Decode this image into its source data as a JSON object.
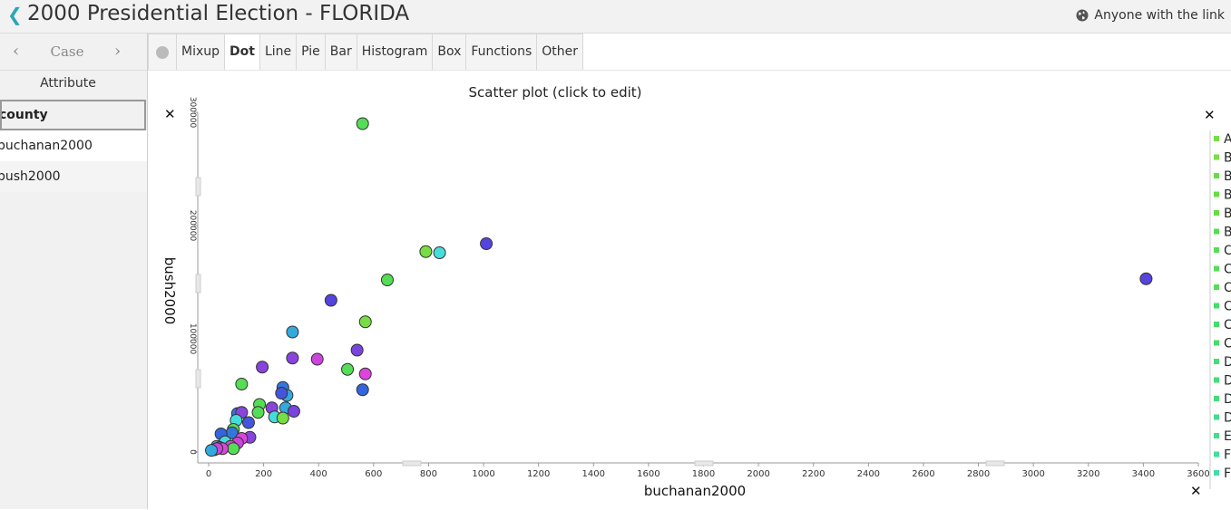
{
  "header": {
    "title": "2000 Presidential Election - FLORIDA",
    "share_label": "Anyone with the link"
  },
  "case_nav": {
    "label": "Case"
  },
  "attributes": {
    "heading": "Attribute",
    "items": [
      "county",
      "buchanan2000",
      "bush2000"
    ],
    "selected": "county"
  },
  "toolbar": {
    "tabs": [
      "Mixup",
      "Dot",
      "Line",
      "Pie",
      "Bar",
      "Histogram",
      "Box",
      "Functions",
      "Other"
    ],
    "active": "Dot"
  },
  "plot": {
    "title": "Scatter plot (click to edit)"
  },
  "legend": {
    "labels": [
      "A",
      "B",
      "B",
      "B",
      "B",
      "B",
      "C",
      "C",
      "C",
      "C",
      "C",
      "C",
      "D",
      "D",
      "D",
      "D",
      "E",
      "F",
      "F"
    ]
  },
  "chart_data": {
    "type": "scatter",
    "title": "Scatter plot (click to edit)",
    "xlabel": "buchanan2000",
    "ylabel": "bush2000",
    "xlim": [
      0,
      3600
    ],
    "ylim": [
      0,
      300000
    ],
    "x_ticks": [
      "0",
      "200",
      "400",
      "600",
      "800",
      "1000",
      "1200",
      "1400",
      "1600",
      "1800",
      "2000",
      "2200",
      "2400",
      "2600",
      "2800",
      "3000",
      "3200",
      "3400",
      "3600"
    ],
    "y_ticks": [
      "0",
      "100000",
      "200000",
      "300000"
    ],
    "points": [
      {
        "x": 560,
        "y": 290000,
        "color": "#55dd55"
      },
      {
        "x": 1010,
        "y": 184000,
        "color": "#5544dd"
      },
      {
        "x": 790,
        "y": 177000,
        "color": "#77dd44"
      },
      {
        "x": 840,
        "y": 176000,
        "color": "#44dddd"
      },
      {
        "x": 650,
        "y": 152000,
        "color": "#55dd55"
      },
      {
        "x": 3410,
        "y": 153000,
        "color": "#5544dd"
      },
      {
        "x": 445,
        "y": 134000,
        "color": "#5544dd"
      },
      {
        "x": 570,
        "y": 115000,
        "color": "#77dd44"
      },
      {
        "x": 305,
        "y": 106000,
        "color": "#33aadd"
      },
      {
        "x": 540,
        "y": 90000,
        "color": "#7744dd"
      },
      {
        "x": 305,
        "y": 83000,
        "color": "#8844dd"
      },
      {
        "x": 395,
        "y": 82000,
        "color": "#cc44dd"
      },
      {
        "x": 195,
        "y": 75000,
        "color": "#8844dd"
      },
      {
        "x": 505,
        "y": 73000,
        "color": "#55dd55"
      },
      {
        "x": 570,
        "y": 69000,
        "color": "#dd44dd"
      },
      {
        "x": 120,
        "y": 60000,
        "color": "#55dd55"
      },
      {
        "x": 270,
        "y": 57000,
        "color": "#3377dd"
      },
      {
        "x": 560,
        "y": 55000,
        "color": "#3366dd"
      },
      {
        "x": 285,
        "y": 50000,
        "color": "#33aadd"
      },
      {
        "x": 265,
        "y": 52000,
        "color": "#4455dd"
      },
      {
        "x": 185,
        "y": 42000,
        "color": "#55dd55"
      },
      {
        "x": 230,
        "y": 39000,
        "color": "#8844dd"
      },
      {
        "x": 280,
        "y": 39000,
        "color": "#33aadd"
      },
      {
        "x": 310,
        "y": 36000,
        "color": "#7744dd"
      },
      {
        "x": 180,
        "y": 35000,
        "color": "#55dd55"
      },
      {
        "x": 105,
        "y": 34000,
        "color": "#3377dd"
      },
      {
        "x": 120,
        "y": 35000,
        "color": "#8844dd"
      },
      {
        "x": 240,
        "y": 31000,
        "color": "#44dddd"
      },
      {
        "x": 270,
        "y": 30000,
        "color": "#77dd44"
      },
      {
        "x": 100,
        "y": 28000,
        "color": "#44dddd"
      },
      {
        "x": 145,
        "y": 26000,
        "color": "#4455dd"
      },
      {
        "x": 90,
        "y": 20000,
        "color": "#55dd55"
      },
      {
        "x": 85,
        "y": 17000,
        "color": "#3377dd"
      },
      {
        "x": 45,
        "y": 16000,
        "color": "#3366dd"
      },
      {
        "x": 150,
        "y": 13000,
        "color": "#8844dd"
      },
      {
        "x": 120,
        "y": 12000,
        "color": "#dd44dd"
      },
      {
        "x": 60,
        "y": 9000,
        "color": "#44dddd"
      },
      {
        "x": 105,
        "y": 8000,
        "color": "#cc44dd"
      },
      {
        "x": 30,
        "y": 5000,
        "color": "#33aadd"
      },
      {
        "x": 80,
        "y": 5000,
        "color": "#dd44dd"
      },
      {
        "x": 40,
        "y": 4000,
        "color": "#8844dd"
      },
      {
        "x": 90,
        "y": 3000,
        "color": "#55dd55"
      },
      {
        "x": 20,
        "y": 2000,
        "color": "#44dddd"
      },
      {
        "x": 50,
        "y": 3000,
        "color": "#dd44dd"
      },
      {
        "x": 30,
        "y": 3000,
        "color": "#cc44dd"
      },
      {
        "x": 10,
        "y": 1500,
        "color": "#33aadd"
      }
    ]
  }
}
